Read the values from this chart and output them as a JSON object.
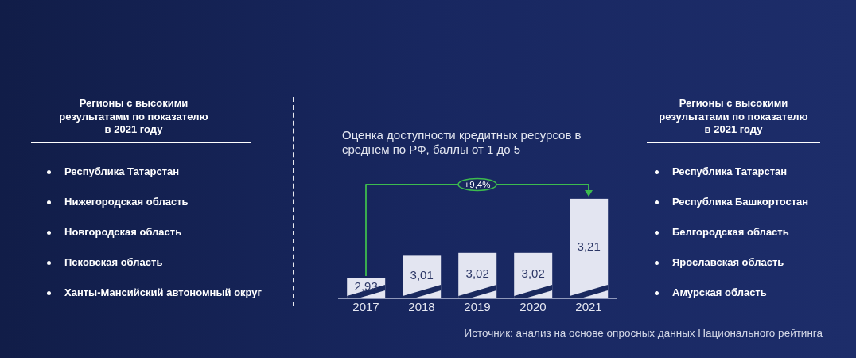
{
  "chart_data": [
    {
      "type": "other",
      "title": "Регионы с высокими результатами по показателю в 2021 году",
      "annotations": [
        "Республика Татарстан",
        "Нижегородская область",
        "Новгородская область",
        "Псковская область",
        "Ханты-Мансийский автономный округ"
      ]
    },
    {
      "type": "bar",
      "title": "Оценка доступности кредитных ресурсов в среднем по РФ, баллы от 1 до 5",
      "categories": [
        "2017",
        "2018",
        "2019",
        "2020",
        "2021"
      ],
      "values": [
        2.93,
        3.01,
        3.02,
        3.02,
        3.21
      ],
      "value_labels": [
        "2,93",
        "3,01",
        "3,02",
        "3,02",
        "3,21"
      ],
      "color": "#e3e5f1",
      "ylim": [
        2.86,
        3.26
      ],
      "tick_labels": "x",
      "annotations": [
        "+9,4%",
        "Источник: анализ на основе опросных данных Национального рейтинга"
      ]
    },
    {
      "type": "other",
      "title": "Регионы с высокими результатами по показателю в 2021 году",
      "annotations": [
        "Республика Татарстан",
        "Республика Башкортостан",
        "Белгородская область",
        "Ярославская область",
        "Амурская область"
      ]
    }
  ]
}
